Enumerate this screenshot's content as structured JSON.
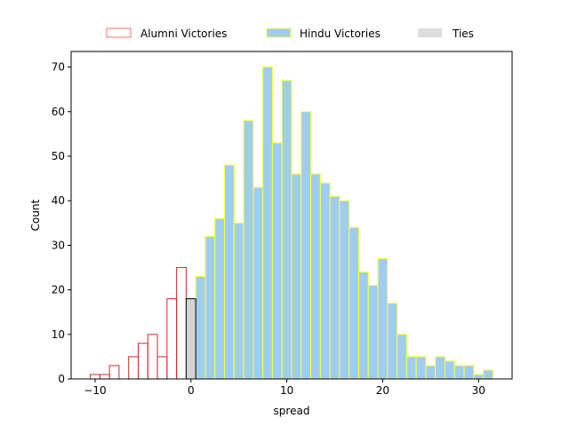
{
  "chart_data": {
    "type": "bar",
    "xlabel": "spread",
    "ylabel": "Count",
    "xlim": [
      -12.5,
      33.5
    ],
    "ylim": [
      0,
      73.5
    ],
    "x_ticks": [
      -10,
      0,
      10,
      20,
      30
    ],
    "y_ticks": [
      0,
      10,
      20,
      30,
      40,
      50,
      60,
      70
    ],
    "grid": false,
    "legend_position": "top-center",
    "series": [
      {
        "name": "Alumni Victories",
        "style": "outline",
        "edge_color": "#d62728",
        "legend_edge_color": "#ff6b6b",
        "face_color": "none",
        "x": [
          -10,
          -9,
          -8,
          -7,
          -6,
          -5,
          -4,
          -3,
          -2,
          -1
        ],
        "values": [
          1,
          1,
          3,
          0,
          5,
          8,
          10,
          5,
          18,
          25
        ]
      },
      {
        "name": "Hindu Victories",
        "style": "filled",
        "face_color": "#9fcdf0",
        "edge_color": "#ffff33",
        "x": [
          1,
          2,
          3,
          4,
          5,
          6,
          7,
          8,
          9,
          10,
          11,
          12,
          13,
          14,
          15,
          16,
          17,
          18,
          19,
          20,
          21,
          22,
          23,
          24,
          25,
          26,
          27,
          28,
          29,
          30,
          31
        ],
        "values": [
          23,
          32,
          36,
          48,
          35,
          58,
          43,
          70,
          53,
          67,
          46,
          60,
          46,
          44,
          41,
          40,
          34,
          24,
          21,
          27,
          17,
          10,
          5,
          5,
          3,
          5,
          4,
          3,
          3,
          1,
          2
        ]
      },
      {
        "name": "Ties",
        "style": "filled",
        "face_color": "#d3d3d3",
        "edge_color": "#000000",
        "legend_face_color": "#dddddd",
        "x": [
          0
        ],
        "values": [
          18
        ]
      }
    ]
  }
}
